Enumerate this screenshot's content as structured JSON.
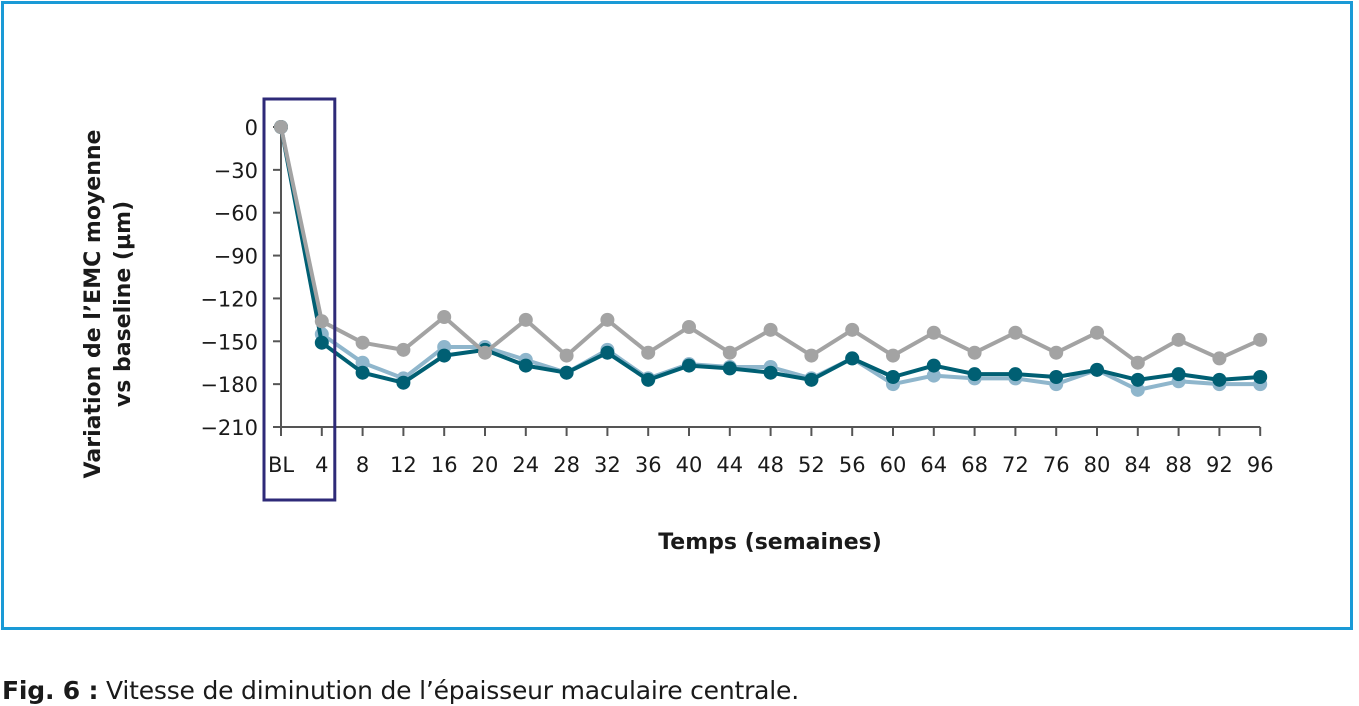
{
  "chart_data": {
    "type": "line",
    "title": "",
    "ylabel_line1": "Variation de l’EMC moyenne",
    "ylabel_line2": "vs baseline (µm)",
    "xlabel": "Temps (semaines)",
    "ylim": [
      -210,
      0
    ],
    "yticks": [
      0,
      -30,
      -60,
      -90,
      -120,
      -150,
      -180,
      -210
    ],
    "categories": [
      "BL",
      "4",
      "8",
      "12",
      "16",
      "20",
      "24",
      "28",
      "32",
      "36",
      "40",
      "44",
      "48",
      "52",
      "56",
      "60",
      "64",
      "68",
      "72",
      "76",
      "80",
      "84",
      "88",
      "92",
      "96"
    ],
    "highlight_categories": [
      "BL",
      "4"
    ],
    "legend": "none",
    "grid": false,
    "series": [
      {
        "color": "#8fb6cc",
        "values": [
          0,
          -145,
          -165,
          -176,
          -154,
          -154,
          -163,
          -172,
          -156,
          -176,
          -166,
          -168,
          -168,
          -176,
          -162,
          -180,
          -174,
          -176,
          -176,
          -180,
          -170,
          -184,
          -178,
          -180,
          -180
        ]
      },
      {
        "color": "#005f73",
        "values": [
          0,
          -151,
          -172,
          -179,
          -160,
          -156,
          -167,
          -172,
          -158,
          -177,
          -167,
          -169,
          -172,
          -177,
          -162,
          -175,
          -167,
          -173,
          -173,
          -175,
          -170,
          -177,
          -173,
          -177,
          -175
        ]
      },
      {
        "color": "#a3a3a3",
        "values": [
          0,
          -136,
          -151,
          -156,
          -133,
          -158,
          -135,
          -160,
          -135,
          -158,
          -140,
          -158,
          -142,
          -160,
          -142,
          -160,
          -144,
          -158,
          -144,
          -158,
          -144,
          -165,
          -149,
          -162,
          -149
        ]
      }
    ]
  },
  "caption": {
    "label": "Fig. 6 :",
    "text": " Vitesse de diminution de l’épaisseur maculaire centrale."
  }
}
